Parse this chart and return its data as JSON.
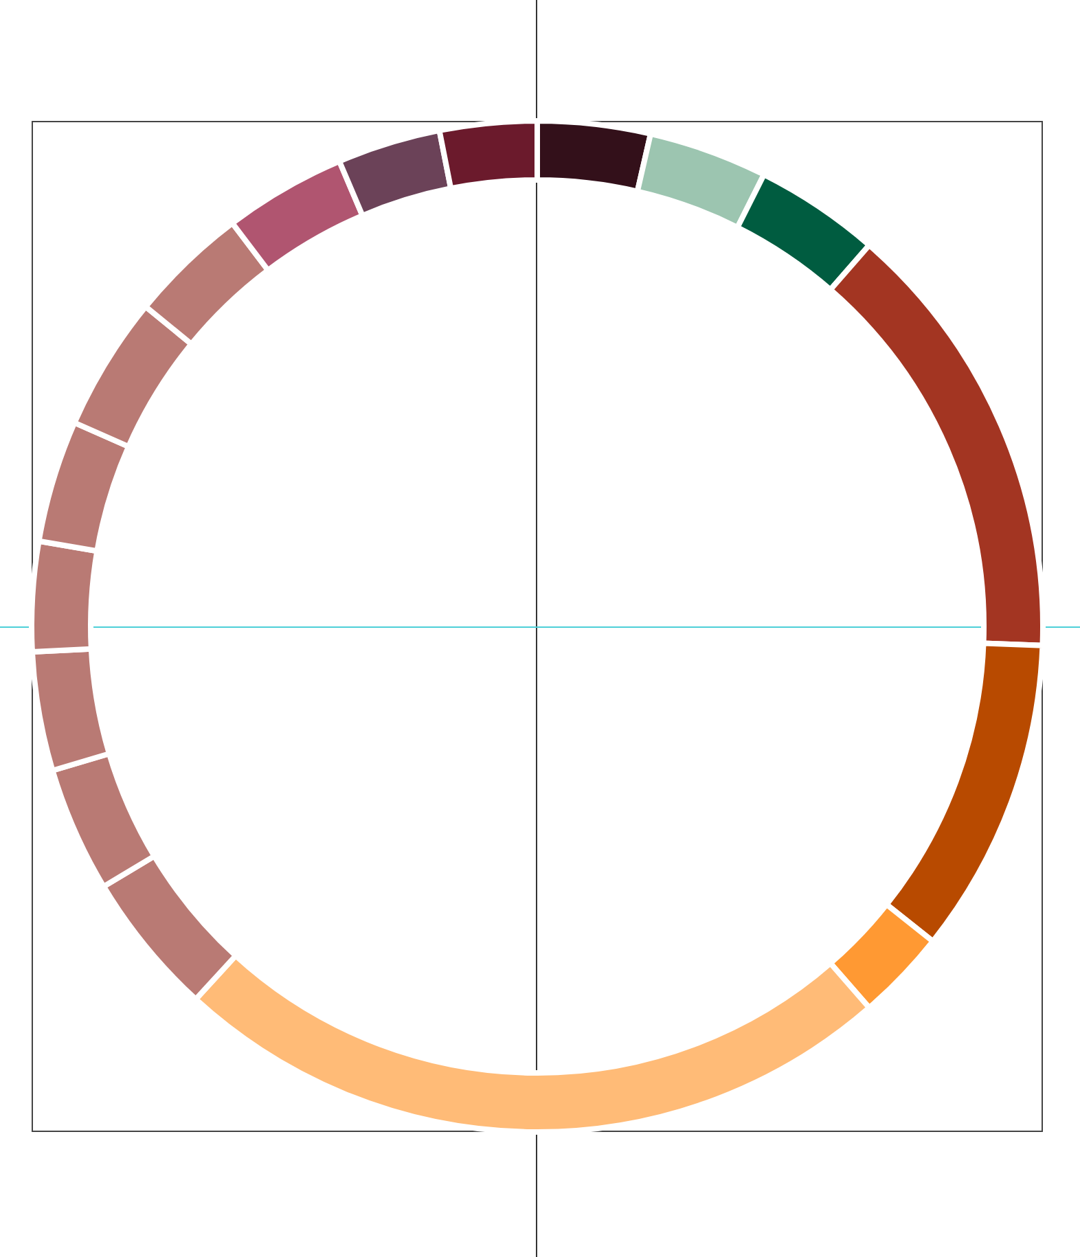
{
  "chart_data": {
    "type": "donut",
    "categories": [
      null,
      null,
      null,
      null,
      null,
      null,
      null,
      null,
      null,
      null,
      null,
      null,
      null,
      null,
      null,
      null,
      null
    ],
    "values": [
      3.6,
      3.8,
      4.0,
      14.2,
      10.1,
      2.9,
      23.2,
      4.6,
      4.0,
      3.8,
      3.5,
      3.9,
      4.3,
      3.8,
      3.9,
      3.3,
      3.1
    ],
    "colors": [
      "#33101a",
      "#9cc5b0",
      "#005c40",
      "#a33522",
      "#b84a00",
      "#ff9933",
      "#ffbb77",
      "#b97a74",
      "#b97a74",
      "#b97a74",
      "#b97a74",
      "#b97a74",
      "#b97a74",
      "#b97a74",
      "#b05570",
      "#6b4258",
      "#6b1a2c"
    ]
  }
}
